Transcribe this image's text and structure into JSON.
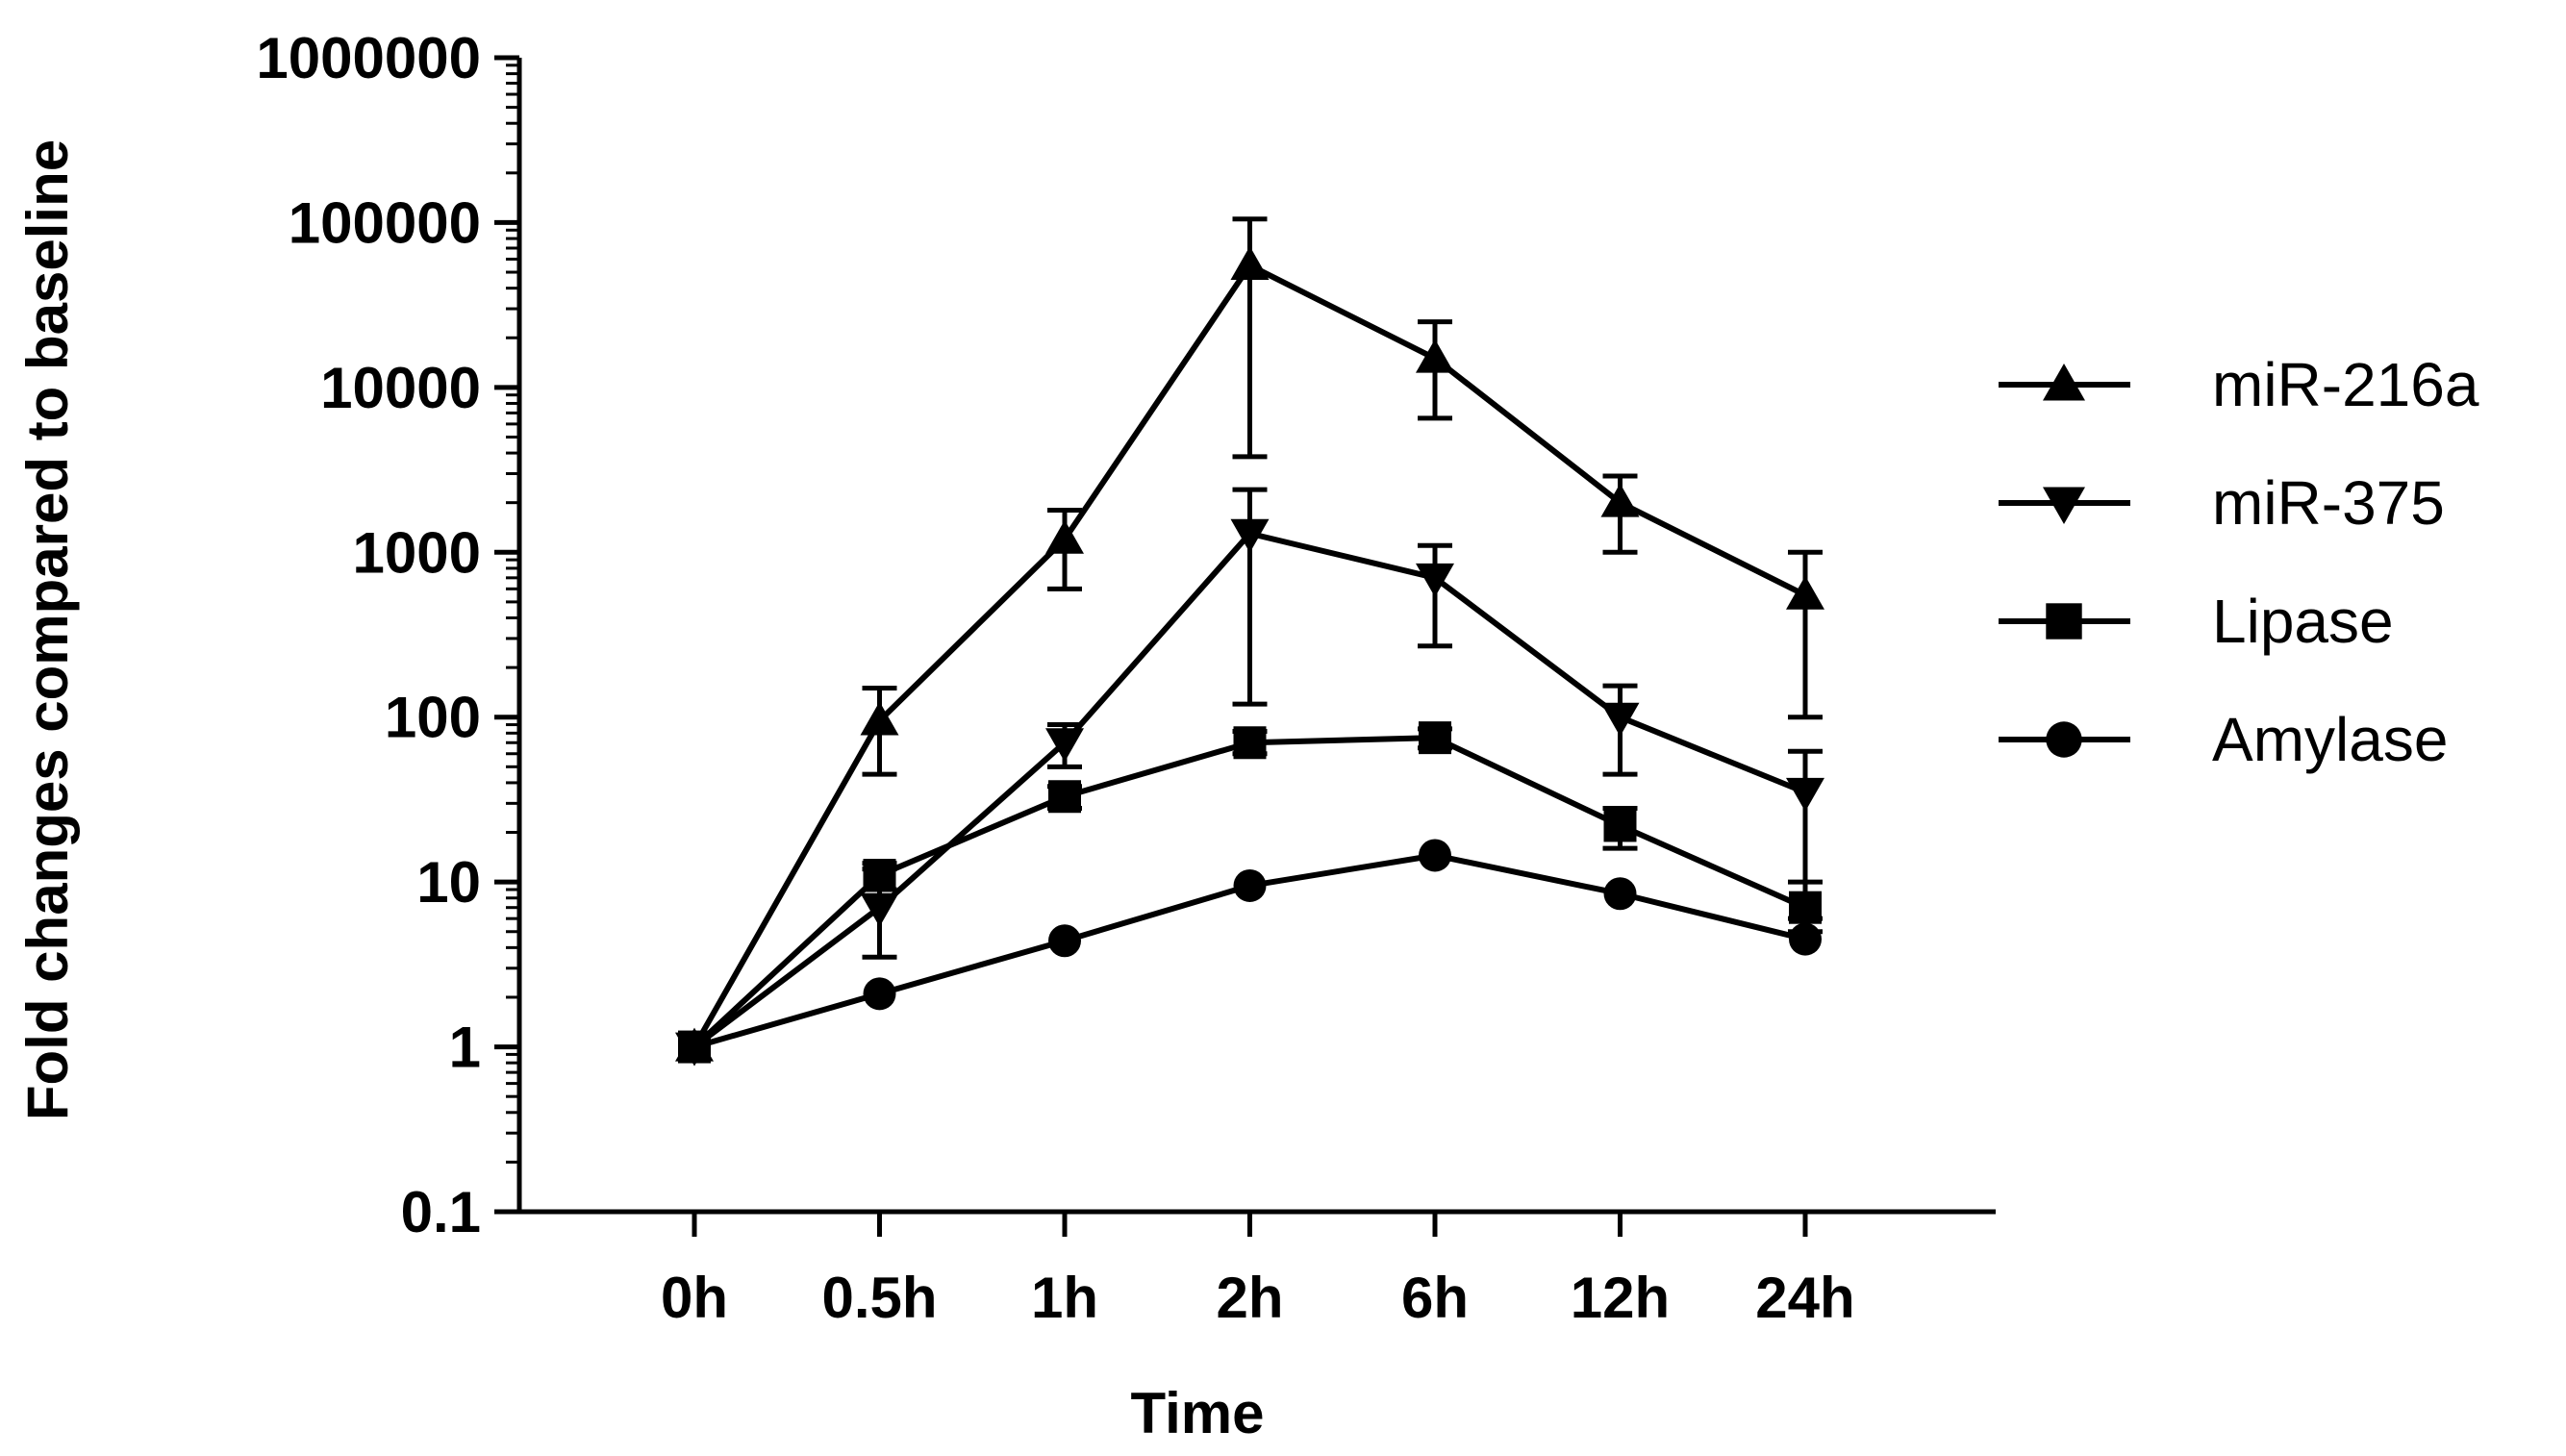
{
  "chart_data": {
    "type": "line",
    "xlabel": "Time",
    "ylabel": "Fold changes compared to baseline",
    "yscale": "log",
    "ylim": [
      0.1,
      1000000
    ],
    "yticks": [
      "1000000",
      "100000",
      "10000",
      "1000",
      "100",
      "10",
      "1",
      "0.1"
    ],
    "ytick_values": [
      1000000,
      100000,
      10000,
      1000,
      100,
      10,
      1,
      0.1
    ],
    "categories": [
      "0h",
      "0.5h",
      "1h",
      "2h",
      "6h",
      "12h",
      "24h"
    ],
    "grid": false,
    "legend_position": "right",
    "series": [
      {
        "name": "miR-216a",
        "marker": "triangle-up",
        "values": [
          1,
          95,
          1200,
          55000,
          15000,
          2000,
          550
        ],
        "err_low": [
          1,
          45,
          600,
          3800,
          6500,
          1000,
          100
        ],
        "err_high": [
          1,
          150,
          1800,
          105000,
          25000,
          2900,
          1000
        ]
      },
      {
        "name": "miR-375",
        "marker": "triangle-down",
        "values": [
          1,
          7,
          70,
          1300,
          700,
          100,
          35
        ],
        "err_low": [
          1,
          3.5,
          50,
          120,
          270,
          45,
          6
        ],
        "err_high": [
          1,
          12,
          90,
          2400,
          1100,
          155,
          62
        ]
      },
      {
        "name": "Lipase",
        "marker": "square",
        "values": [
          1,
          11,
          33,
          70,
          75,
          22,
          7
        ],
        "err_low": [
          1,
          9,
          28,
          60,
          65,
          16,
          5
        ],
        "err_high": [
          1,
          13,
          38,
          82,
          85,
          28,
          10
        ]
      },
      {
        "name": "Amylase",
        "marker": "circle",
        "values": [
          1,
          2.1,
          4.4,
          9.5,
          14.5,
          8.5,
          4.5
        ],
        "err_low": [
          1,
          2.1,
          4.4,
          9.5,
          14.5,
          8.5,
          4.5
        ],
        "err_high": [
          1,
          2.1,
          4.4,
          9.5,
          14.5,
          8.5,
          4.5
        ]
      }
    ]
  }
}
